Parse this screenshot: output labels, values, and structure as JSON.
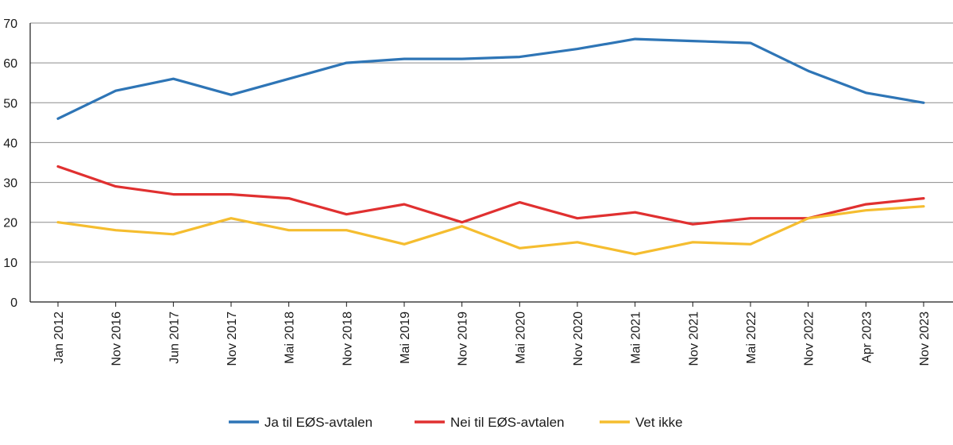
{
  "chart_data": {
    "type": "line",
    "title": "",
    "xlabel": "",
    "ylabel": "",
    "ylim": [
      0,
      70
    ],
    "yticks": [
      0,
      10,
      20,
      30,
      40,
      50,
      60,
      70
    ],
    "grid": "horizontal",
    "legend": "bottom",
    "categories": [
      "Jan 2012",
      "Nov 2016",
      "Jun 2017",
      "Nov 2017",
      "Mai 2018",
      "Nov 2018",
      "Mai 2019",
      "Nov 2019",
      "Mai 2020",
      "Nov 2020",
      "Mai 2021",
      "Nov 2021",
      "Mai 2022",
      "Nov 2022",
      "Apr 2023",
      "Nov 2023"
    ],
    "series": [
      {
        "name": "Ja til EØS-avtalen",
        "color": "#2e75b6",
        "values": [
          46,
          53,
          56,
          52,
          56,
          60,
          61,
          61,
          61.5,
          63.5,
          66,
          65.5,
          65,
          58,
          52.5,
          50
        ]
      },
      {
        "name": "Nei til EØS-avtalen",
        "color": "#e03030",
        "values": [
          34,
          29,
          27,
          27,
          26,
          22,
          24.5,
          20,
          25,
          21,
          22.5,
          19.5,
          21,
          21,
          24.5,
          26
        ]
      },
      {
        "name": "Vet ikke",
        "color": "#f5bd2f",
        "values": [
          20,
          18,
          17,
          21,
          18,
          18,
          14.5,
          19,
          13.5,
          15,
          12,
          15,
          14.5,
          21,
          23,
          24
        ]
      }
    ]
  }
}
